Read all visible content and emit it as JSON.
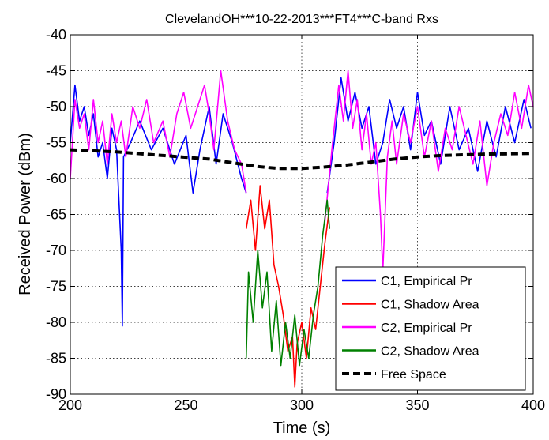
{
  "chart_data": {
    "type": "line",
    "title": "ClevelandOH***10-22-2013***FT4***C-band Rxs",
    "xlabel": "Time (s)",
    "ylabel": "Received Power (dBm)",
    "xlim": [
      200,
      400
    ],
    "ylim": [
      -90,
      -40
    ],
    "xticks": [
      "200",
      "250",
      "300",
      "350",
      "400"
    ],
    "yticks": [
      "-40",
      "-45",
      "-50",
      "-55",
      "-60",
      "-65",
      "-70",
      "-75",
      "-80",
      "-85",
      "-90"
    ],
    "grid": true,
    "legend_position": "bottom-right",
    "series": [
      {
        "name": "C1, Empirical Pr",
        "color": "#0000ff",
        "style": "solid",
        "segments": [
          {
            "x": [
              200,
              202,
              204,
              206,
              208,
              210,
              212,
              214,
              216,
              218,
              220,
              222,
              222.5,
              223,
              226,
              230,
              235,
              240,
              245,
              250,
              253,
              256,
              260,
              263,
              266,
              270,
              274,
              276
            ],
            "y": [
              -55,
              -47,
              -52,
              -50,
              -54,
              -51,
              -57,
              -55,
              -60,
              -53,
              -56,
              -70,
              -80.5,
              -57,
              -55,
              -52,
              -56,
              -53,
              -58,
              -54,
              -62,
              -56,
              -50,
              -58,
              -51,
              -55,
              -60,
              -62
            ]
          },
          {
            "x": [
              311,
              314,
              317,
              320,
              323,
              326,
              329,
              332,
              335,
              338,
              341,
              344,
              347,
              350,
              353,
              356,
              360,
              364,
              368,
              372,
              376,
              380,
              384,
              388,
              392,
              396,
              399
            ],
            "y": [
              -62,
              -55,
              -46,
              -52,
              -48,
              -53,
              -50,
              -58,
              -55,
              -49,
              -53,
              -50,
              -56,
              -48,
              -54,
              -52,
              -58,
              -50,
              -56,
              -53,
              -59,
              -52,
              -57,
              -50,
              -55,
              -49,
              -53
            ]
          }
        ]
      },
      {
        "name": "C1, Shadow Area",
        "color": "#ff0000",
        "style": "solid",
        "segments": [
          {
            "x": [
              276,
              278,
              280,
              282,
              284,
              286,
              288,
              290,
              292,
              294,
              296,
              297,
              298,
              300,
              302,
              304,
              306,
              308,
              310,
              312
            ],
            "y": [
              -67,
              -63,
              -70,
              -61,
              -67,
              -63,
              -72,
              -75,
              -79,
              -84,
              -82,
              -89,
              -83,
              -80,
              -85,
              -78,
              -81,
              -75,
              -69,
              -64
            ]
          }
        ]
      },
      {
        "name": "C2, Empirical Pr",
        "color": "#ff00ff",
        "style": "solid",
        "segments": [
          {
            "x": [
              200,
              202,
              204,
              206,
              208,
              210,
              212,
              214,
              216,
              218,
              220,
              222,
              224,
              227,
              230,
              233,
              236,
              240,
              243,
              246,
              249,
              252,
              255,
              258,
              260,
              262,
              265,
              268,
              271,
              274,
              276
            ],
            "y": [
              -60,
              -49,
              -53,
              -51,
              -56,
              -49,
              -55,
              -52,
              -58,
              -51,
              -55,
              -52,
              -57,
              -50,
              -53,
              -49,
              -55,
              -52,
              -57,
              -51,
              -48,
              -53,
              -50,
              -47,
              -51,
              -56,
              -45,
              -52,
              -56,
              -58,
              -62
            ]
          },
          {
            "x": [
              310,
              313,
              316,
              318,
              320,
              322,
              324,
              326,
              328,
              330,
              332,
              334,
              335,
              337,
              339,
              341,
              344,
              347,
              350,
              353,
              356,
              359,
              362,
              365,
              368,
              371,
              374,
              377,
              380,
              383,
              386,
              389,
              392,
              395,
              398,
              400
            ],
            "y": [
              -66,
              -56,
              -47,
              -52,
              -45,
              -53,
              -49,
              -56,
              -51,
              -58,
              -55,
              -65,
              -73,
              -57,
              -52,
              -58,
              -51,
              -55,
              -50,
              -57,
              -52,
              -59,
              -53,
              -56,
              -50,
              -54,
              -58,
              -52,
              -61,
              -55,
              -51,
              -54,
              -48,
              -53,
              -47,
              -50
            ]
          }
        ]
      },
      {
        "name": "C2, Shadow Area",
        "color": "#008000",
        "style": "solid",
        "segments": [
          {
            "x": [
              276,
              277,
              279,
              281,
              283,
              285,
              287,
              289,
              291,
              293,
              295,
              297,
              299,
              301,
              303,
              305,
              307,
              309,
              311,
              312
            ],
            "y": [
              -85,
              -73,
              -80,
              -70,
              -78,
              -73,
              -84,
              -77,
              -86,
              -80,
              -85,
              -79,
              -86,
              -81,
              -85,
              -79,
              -75,
              -68,
              -63,
              -67
            ]
          }
        ]
      },
      {
        "name": "Free Space",
        "color": "#000000",
        "style": "dashed",
        "segments": [
          {
            "x": [
              200,
              220,
              240,
              260,
              270,
              280,
              290,
              300,
              310,
              320,
              330,
              340,
              350,
              360,
              380,
              400
            ],
            "y": [
              -56,
              -56.3,
              -56.8,
              -57.3,
              -57.8,
              -58.3,
              -58.6,
              -58.6,
              -58.4,
              -58.1,
              -57.7,
              -57.3,
              -57.0,
              -56.8,
              -56.6,
              -56.5
            ]
          }
        ]
      }
    ]
  }
}
